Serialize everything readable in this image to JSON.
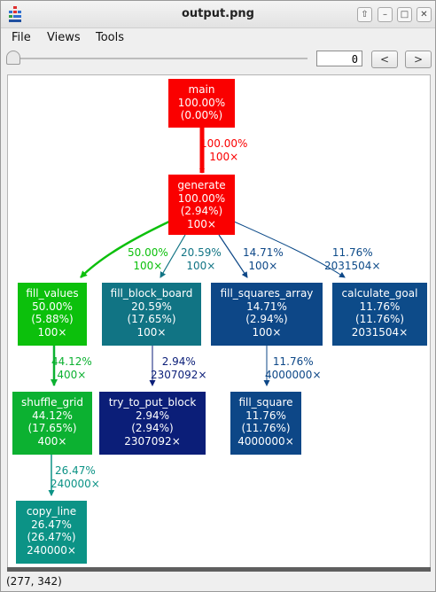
{
  "window": {
    "title": "output.png"
  },
  "menu": {
    "file": "File",
    "views": "Views",
    "tools": "Tools"
  },
  "toolbar": {
    "zoom_value": "0",
    "prev": "<",
    "next": ">"
  },
  "status": {
    "coords": "(277, 342)"
  },
  "colors": {
    "red": "#fa0000",
    "green": "#0cc00c",
    "green2": "#0cb131",
    "teal": "#0c9386",
    "teal_blue": "#117484",
    "blue": "#0d4787",
    "blue2": "#0d4b89",
    "navy": "#0b1e78"
  },
  "graph": {
    "nodes": {
      "main": [
        "main",
        "100.00%",
        "(0.00%)"
      ],
      "generate": [
        "generate",
        "100.00%",
        "(2.94%)",
        "100×"
      ],
      "fill_values": [
        "fill_values",
        "50.00%",
        "(5.88%)",
        "100×"
      ],
      "fill_block_board": [
        "fill_block_board",
        "20.59%",
        "(17.65%)",
        "100×"
      ],
      "fill_squares_array": [
        "fill_squares_array",
        "14.71%",
        "(2.94%)",
        "100×"
      ],
      "calculate_goal": [
        "calculate_goal",
        "11.76%",
        "(11.76%)",
        "2031504×"
      ],
      "shuffle_grid": [
        "shuffle_grid",
        "44.12%",
        "(17.65%)",
        "400×"
      ],
      "try_to_put_block": [
        "try_to_put_block",
        "2.94%",
        "(2.94%)",
        "2307092×"
      ],
      "fill_square": [
        "fill_square",
        "11.76%",
        "(11.76%)",
        "4000000×"
      ],
      "copy_line": [
        "copy_line",
        "26.47%",
        "(26.47%)",
        "240000×"
      ]
    },
    "edges": {
      "main_generate": [
        "100.00%",
        "100×"
      ],
      "generate_fill_values": [
        "50.00%",
        "100×"
      ],
      "generate_fill_block_board": [
        "20.59%",
        "100×"
      ],
      "generate_fill_squares_array": [
        "14.71%",
        "100×"
      ],
      "generate_calculate_goal": [
        "11.76%",
        "2031504×"
      ],
      "fill_values_shuffle_grid": [
        "44.12%",
        "400×"
      ],
      "fill_block_board_try_to_put_block": [
        "2.94%",
        "2307092×"
      ],
      "fill_squares_array_fill_square": [
        "11.76%",
        "4000000×"
      ],
      "shuffle_grid_copy_line": [
        "26.47%",
        "240000×"
      ]
    }
  }
}
